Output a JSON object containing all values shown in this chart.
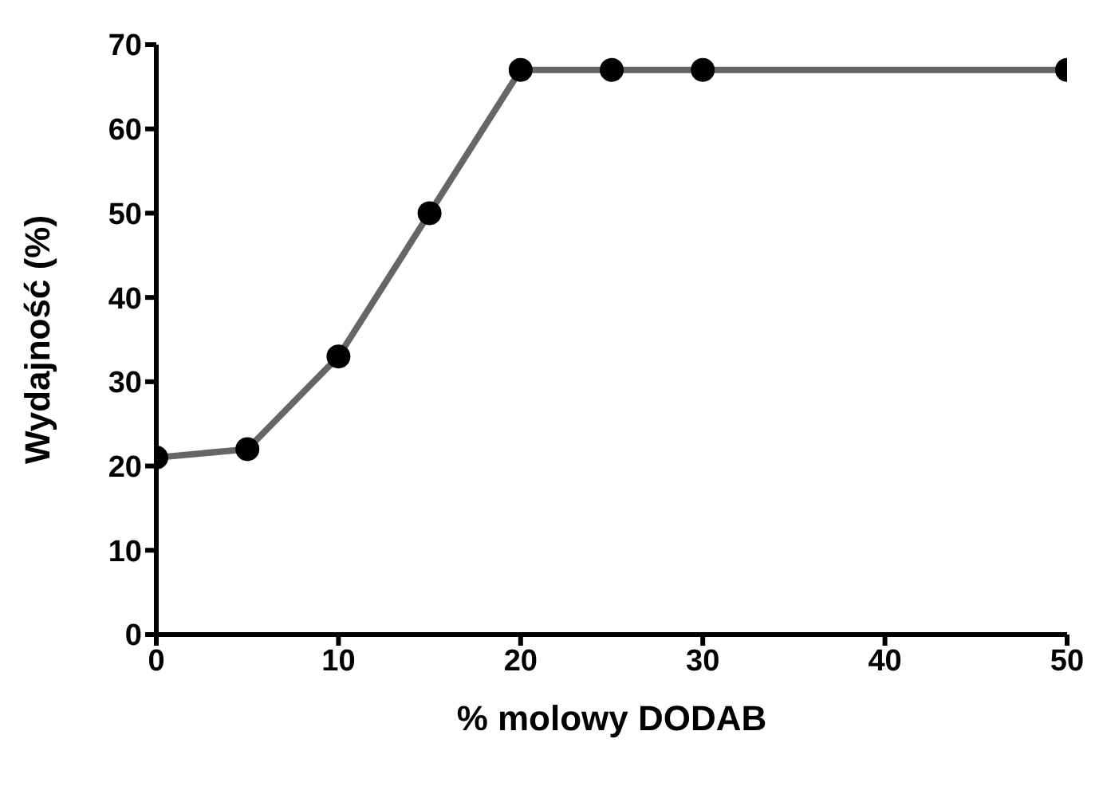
{
  "chart_data": {
    "type": "line",
    "xlabel": "% molowy DODAB",
    "ylabel": "Wydajność (%)",
    "x": [
      0,
      5,
      10,
      15,
      20,
      25,
      30,
      50
    ],
    "series": [
      {
        "color": "#666666",
        "values": [
          21,
          22,
          33,
          50,
          67,
          67,
          67,
          67
        ]
      }
    ],
    "xlim": [
      0,
      50
    ],
    "xticks": [
      0,
      10,
      20,
      30,
      40,
      50
    ],
    "ylim": [
      0,
      70
    ],
    "yticks": [
      0,
      10,
      20,
      30,
      40,
      50,
      60,
      70
    ],
    "grid": false,
    "legend": false,
    "marker": "circle",
    "line_style": "solid"
  }
}
